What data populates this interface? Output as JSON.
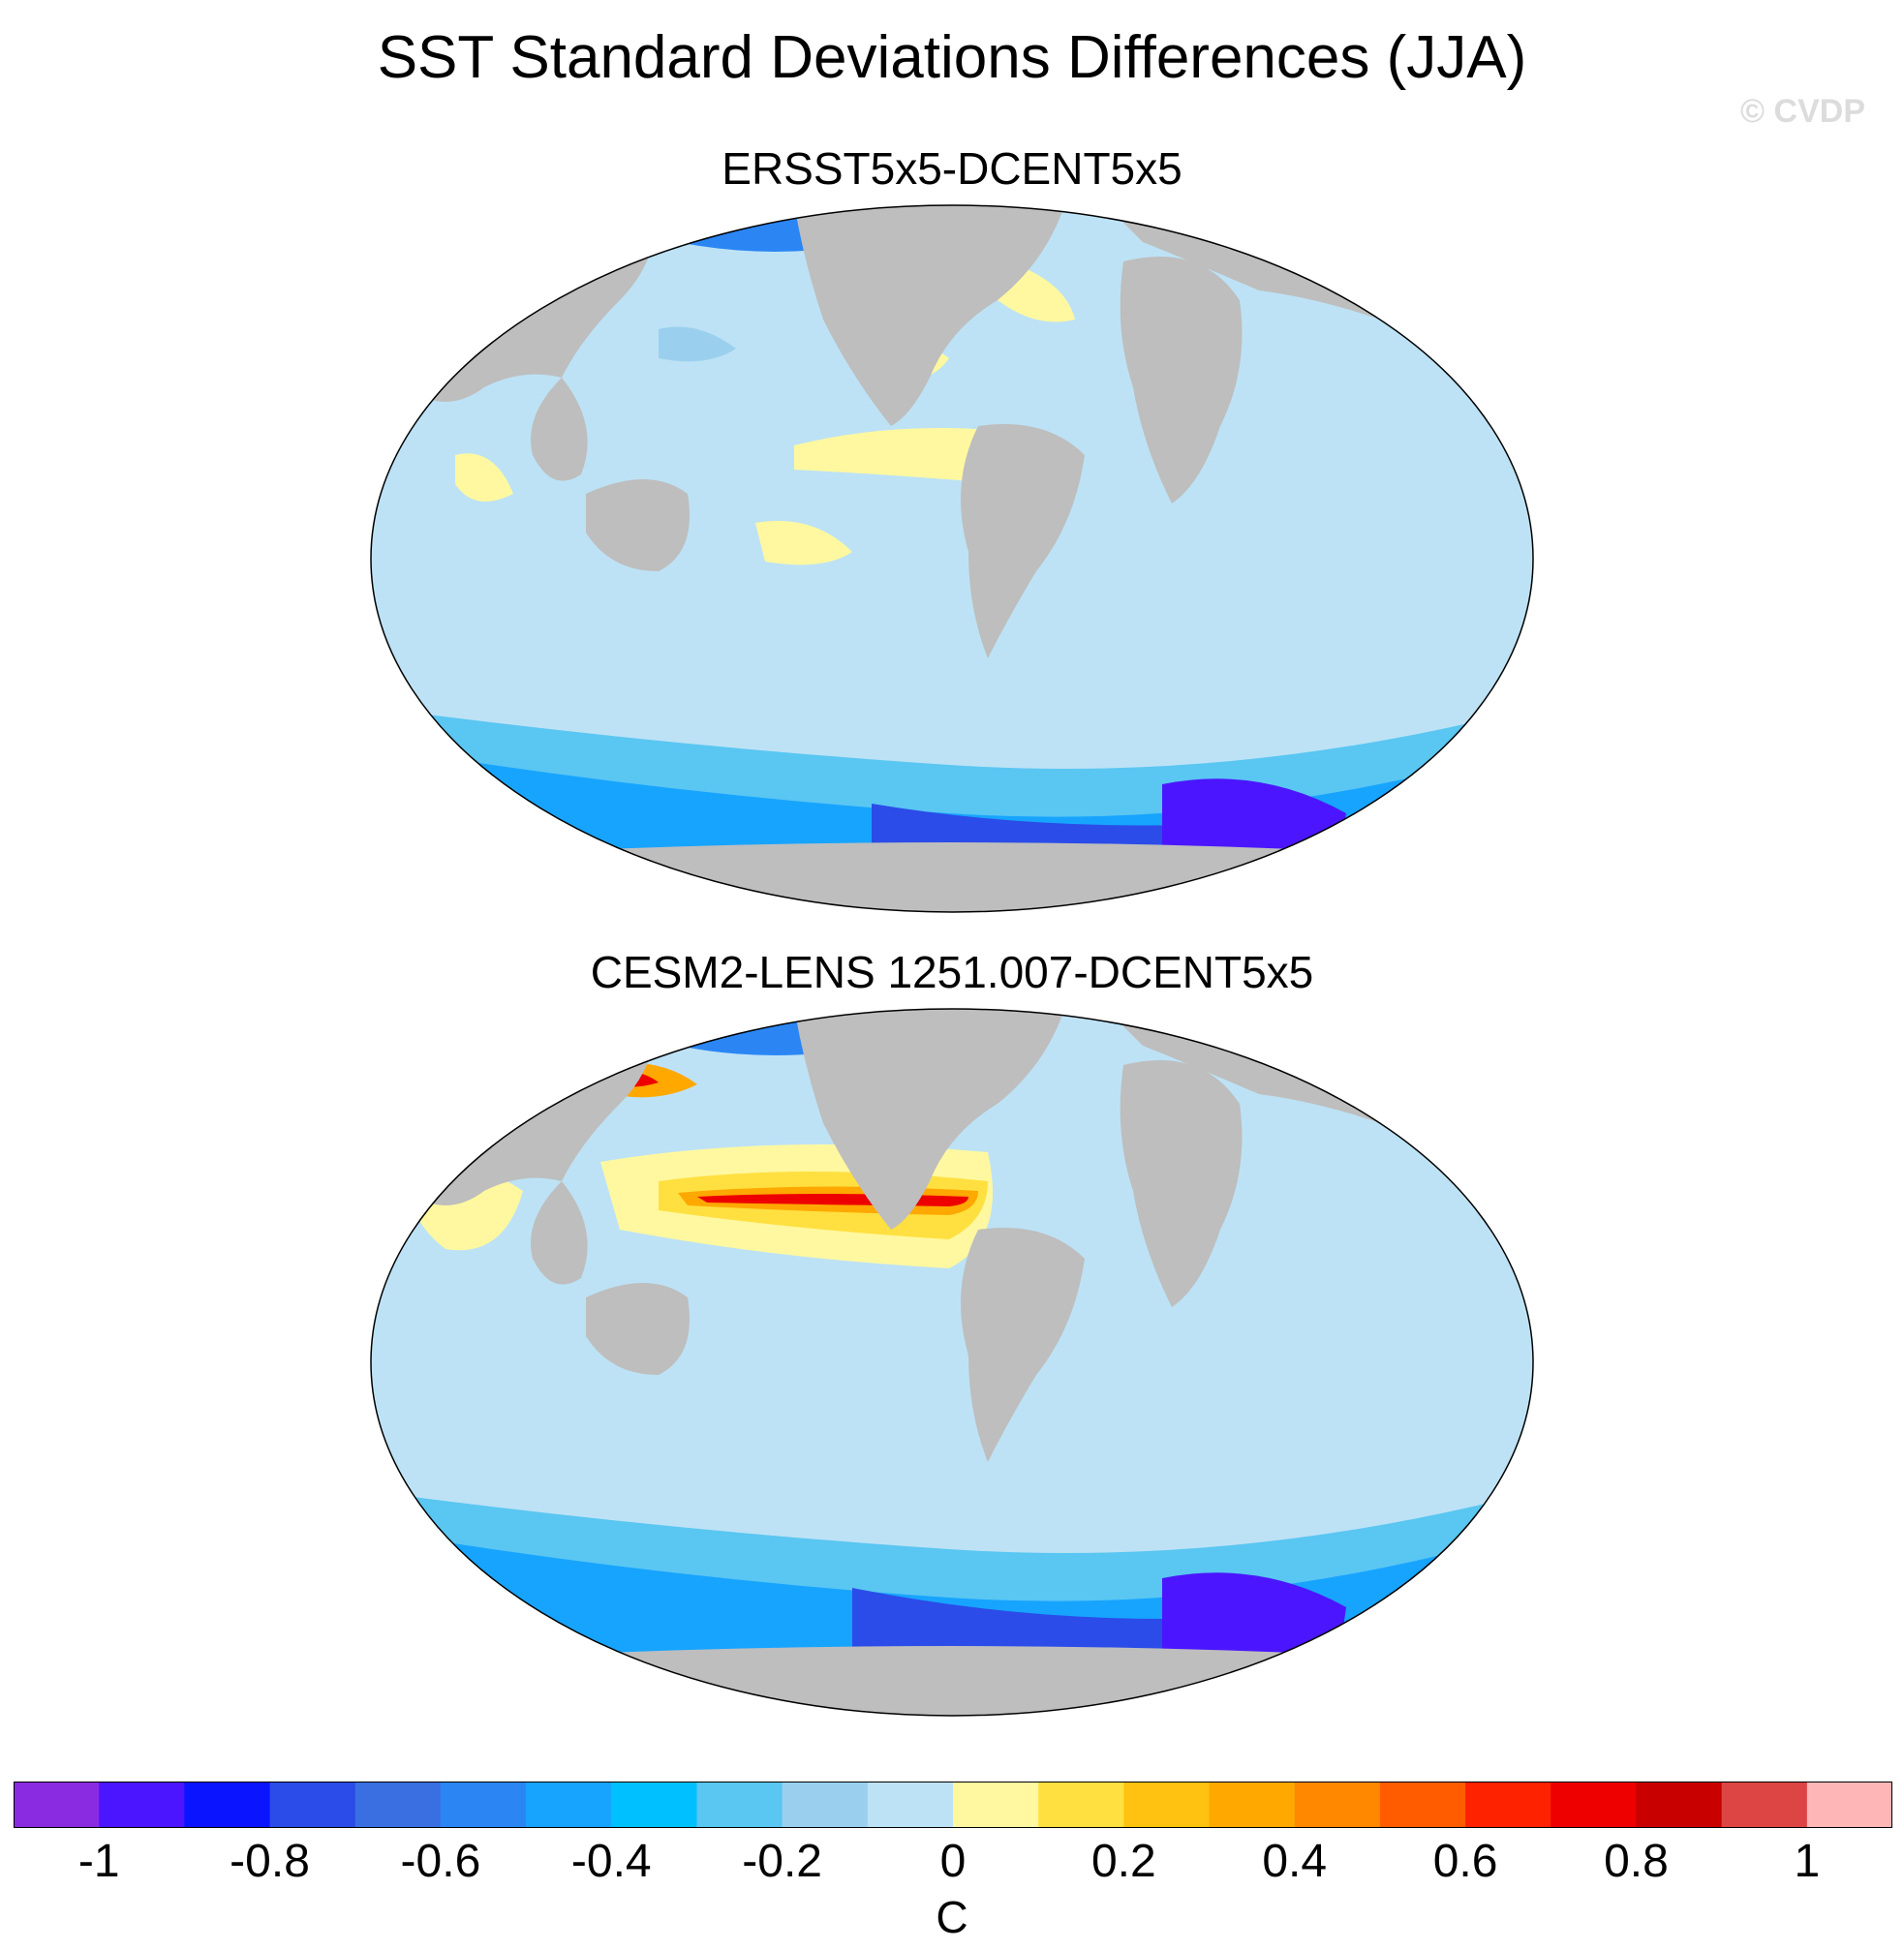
{
  "title": "SST Standard Deviations Differences (JJA)",
  "watermark": "© CVDP",
  "panels": [
    {
      "title": "ERSST5x5-DCENT5x5"
    },
    {
      "title": "CESM2-LENS 1251.007-DCENT5x5"
    }
  ],
  "colorbar": {
    "units": "C",
    "colors": [
      "#8a2be2",
      "#4b16ff",
      "#0a14ff",
      "#2b4ce8",
      "#3a6fe2",
      "#2b86f4",
      "#17a4ff",
      "#00c0ff",
      "#5ac6f2",
      "#9ad0ee",
      "#bde2f5",
      "#fff8a0",
      "#ffe040",
      "#ffc210",
      "#ffa800",
      "#ff8800",
      "#ff5c00",
      "#ff2200",
      "#ee0000",
      "#c80000",
      "#dd4444",
      "#ffb6b6"
    ],
    "ticks": [
      "-1",
      "-0.8",
      "-0.6",
      "-0.4",
      "-0.2",
      "0",
      "0.2",
      "0.4",
      "0.6",
      "0.8",
      "1"
    ]
  },
  "colors": {
    "land": "#bebebe",
    "ocean_missing": "#ffffff",
    "background": "#ffffff"
  }
}
